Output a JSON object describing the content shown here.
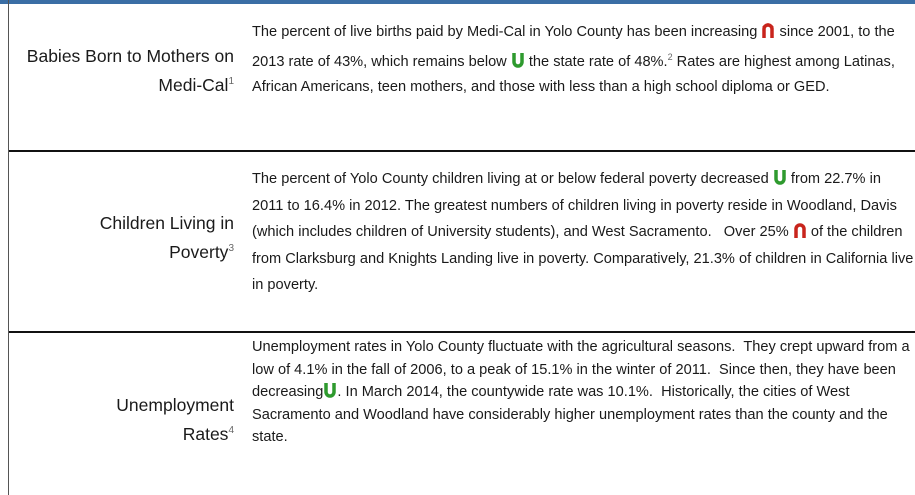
{
  "table": {
    "rows": [
      {
        "label": "Babies Born to Mothers on Medi-Cal",
        "note": "1",
        "text": [
          "The percent of live births paid by Medi-Cal in Yolo County has been increasing",
          "since 2001, to the 2013 rate of 43%, which remains below",
          "the state rate of 48%.",
          "2",
          "Rates are highest among Latinas, African Americans, teen mothers, and those with less than a high school diploma or GED."
        ]
      },
      {
        "label": "Children Living in Poverty",
        "note": "3",
        "text": [
          "The percent of Yolo County children living at or below federal poverty decreased",
          "from 22.7% in 2011 to 16.4% in 2012. The greatest numbers of children living in poverty reside in Woodland, Davis (which includes children of University students), and West Sacramento.   Over 25%",
          "of the children from Clarksburg and Knights Landing live in poverty. Comparatively, 21.3% of children in California live in poverty."
        ]
      },
      {
        "label": "Unemployment Rates",
        "note": "4",
        "text": [
          "Unemployment rates in Yolo County fluctuate with the agricultural seasons.  They crept upward from a low of 4.1% in the fall of 2006, to a peak of 15.1% in the winter of 2011.  Since then, they have been decreasing",
          ". In March 2014, the countywide rate was 10.1%.  Historically, the cities of West Sacramento and Woodland have considerably higher unemployment rates than the county and the state."
        ]
      }
    ]
  }
}
